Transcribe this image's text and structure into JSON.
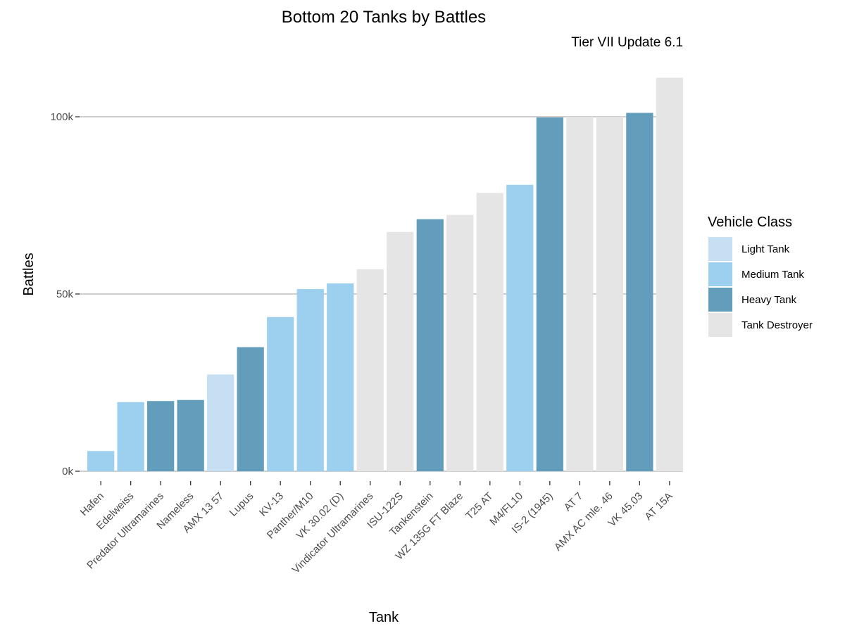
{
  "chart_data": {
    "type": "bar",
    "title": "Bottom 20 Tanks by Battles",
    "subtitle": "Tier VII Update 6.1",
    "xlabel": "Tank",
    "ylabel": "Battles",
    "ylim": [
      0,
      110000
    ],
    "yticks": [
      0,
      50000,
      100000
    ],
    "ytick_labels": [
      "0k",
      "50k",
      "100k"
    ],
    "grid": "horizontal",
    "legend_position": "right",
    "legend": {
      "title": "Vehicle Class",
      "entries": [
        {
          "name": "Light Tank",
          "color": "#c6dff3"
        },
        {
          "name": "Medium Tank",
          "color": "#9dcfef"
        },
        {
          "name": "Heavy Tank",
          "color": "#639dbc"
        },
        {
          "name": "Tank Destroyer",
          "color": "#e5e5e5"
        }
      ]
    },
    "bars": [
      {
        "category": "Hafen",
        "value": 5700,
        "class": "Medium Tank"
      },
      {
        "category": "Edelweiss",
        "value": 19500,
        "class": "Medium Tank"
      },
      {
        "category": "Predator Ultramarines",
        "value": 19800,
        "class": "Heavy Tank"
      },
      {
        "category": "Nameless",
        "value": 20100,
        "class": "Heavy Tank"
      },
      {
        "category": "AMX 13 57",
        "value": 27300,
        "class": "Light Tank"
      },
      {
        "category": "Lupus",
        "value": 35000,
        "class": "Heavy Tank"
      },
      {
        "category": "KV-13",
        "value": 43500,
        "class": "Medium Tank"
      },
      {
        "category": "Panther/M10",
        "value": 51400,
        "class": "Medium Tank"
      },
      {
        "category": "VK 30.02 (D)",
        "value": 53000,
        "class": "Medium Tank"
      },
      {
        "category": "Vindicator Ultramarines",
        "value": 57000,
        "class": "Tank Destroyer"
      },
      {
        "category": "ISU-122S",
        "value": 67500,
        "class": "Tank Destroyer"
      },
      {
        "category": "Tankenstein",
        "value": 71100,
        "class": "Heavy Tank"
      },
      {
        "category": "WZ 135G FT Blaze",
        "value": 72300,
        "class": "Tank Destroyer"
      },
      {
        "category": "T25 AT",
        "value": 78500,
        "class": "Tank Destroyer"
      },
      {
        "category": "M4/FL10",
        "value": 80800,
        "class": "Medium Tank"
      },
      {
        "category": "IS-2 (1945)",
        "value": 99800,
        "class": "Heavy Tank"
      },
      {
        "category": "AT 7",
        "value": 100000,
        "class": "Tank Destroyer"
      },
      {
        "category": "AMX AC mle. 46",
        "value": 100000,
        "class": "Tank Destroyer"
      },
      {
        "category": "VK 45.03",
        "value": 101100,
        "class": "Heavy Tank"
      },
      {
        "category": "AT 15A",
        "value": 111000,
        "class": "Tank Destroyer"
      }
    ]
  }
}
